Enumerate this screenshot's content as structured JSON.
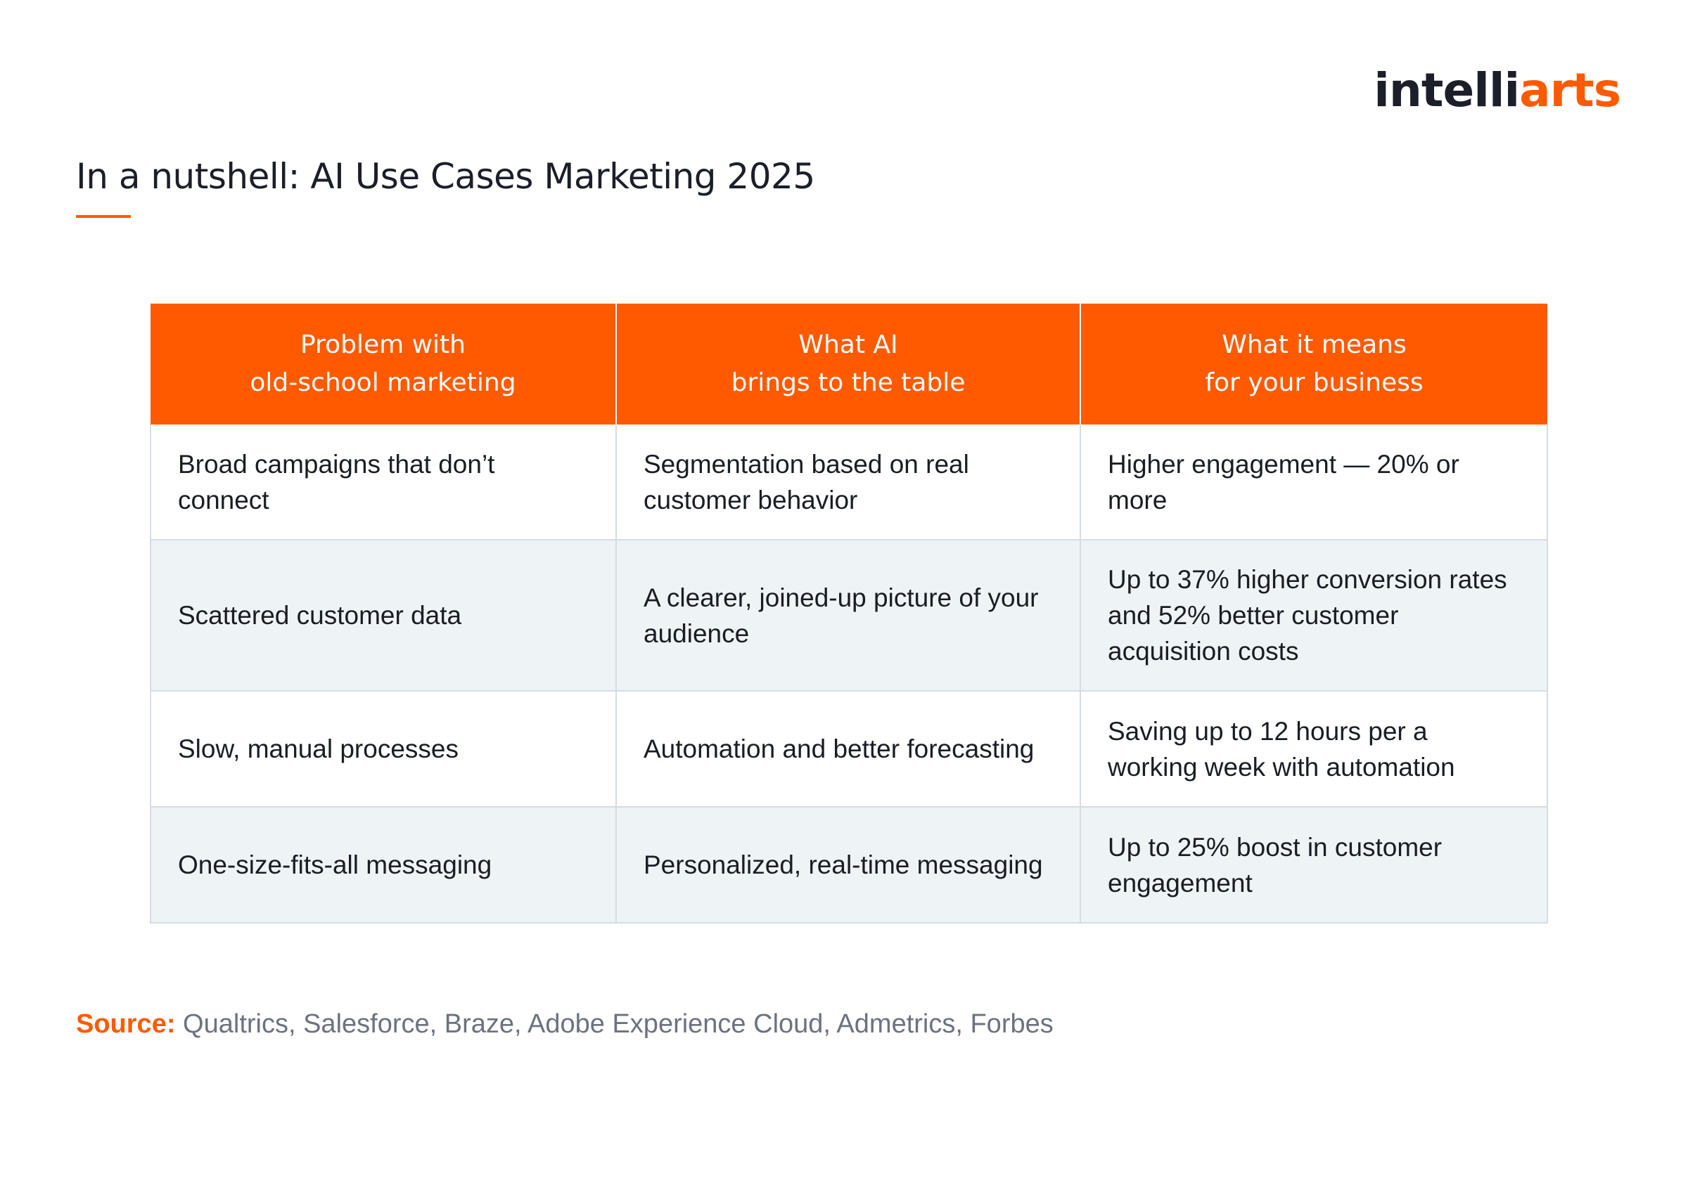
{
  "brand": {
    "logo_dark": "intelli",
    "logo_accent": "arts",
    "accent_color": "#ff5a00",
    "dark_color": "#1c1f2a"
  },
  "title": "In a nutshell: AI Use Cases Marketing 2025",
  "table": {
    "headers": [
      "Problem with\nold-school marketing",
      "What AI\nbrings to the table",
      "What it means\nfor your business"
    ],
    "rows": [
      {
        "problem": "Broad campaigns that don’t connect",
        "ai": "Segmentation based on real customer behavior",
        "impact": "Higher engagement — 20% or more"
      },
      {
        "problem": "Scattered customer data",
        "ai": "A clearer, joined-up picture of your audience",
        "impact": "Up to 37% higher conversion rates and 52% better customer acquisition costs"
      },
      {
        "problem": "Slow, manual processes",
        "ai": "Automation and better forecasting",
        "impact": "Saving up to 12 hours per a working week with automation"
      },
      {
        "problem": "One-size-fits-all messaging",
        "ai": "Personalized, real-time messaging",
        "impact": "Up to 25% boost in customer engagement"
      }
    ],
    "header_color": "#ff5a00",
    "alt_row_color": "#eef3f5"
  },
  "source": {
    "label": "Source:",
    "text": "Qualtrics, Salesforce, Braze, Adobe Experience Cloud, Admetrics, Forbes"
  }
}
